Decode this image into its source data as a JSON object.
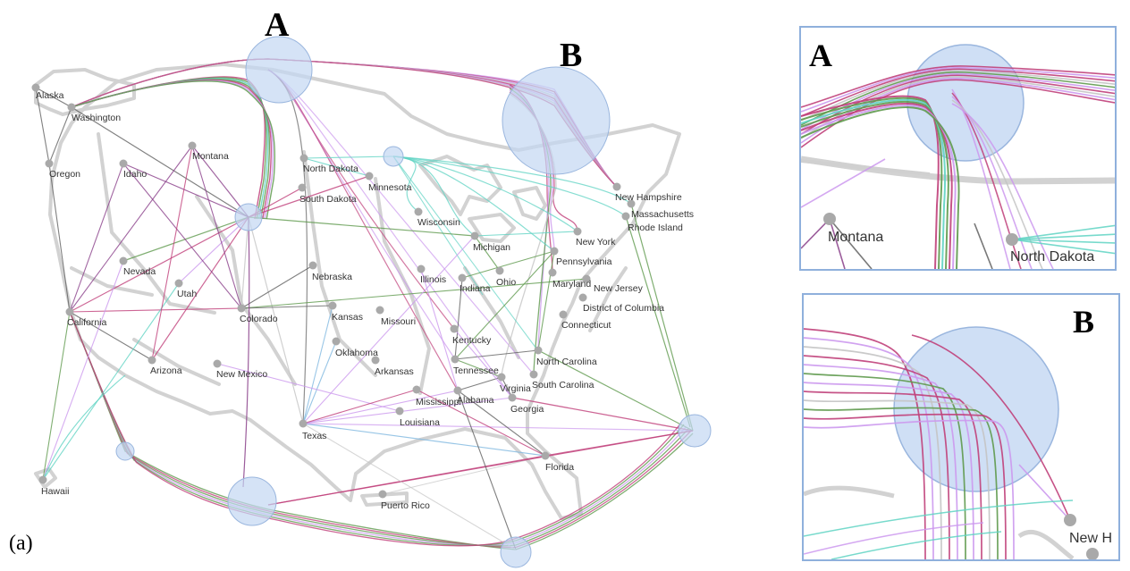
{
  "figure": {
    "panel_label": "(a)",
    "letter_a": "A",
    "letter_b": "B"
  },
  "colors": {
    "map_outline": "#d2d2d2",
    "node": "#a9a9a9",
    "hub_fill": "#c3d7f2",
    "hub_stroke": "#9ab6de",
    "edge_magenta": "#c0407a",
    "edge_green": "#5f9a4e",
    "edge_teal": "#5fd3c3",
    "edge_violet": "#cc99ee",
    "edge_dark": "#606060",
    "edge_lightgray": "#c4c4c4",
    "edge_blue": "#7fb8e0",
    "edge_purple": "#8a3f8a",
    "inset_frame": "#8fb0dc"
  },
  "states": [
    "Alaska",
    "Washington",
    "Oregon",
    "Idaho",
    "Montana",
    "Nevada",
    "Utah",
    "California",
    "Colorado",
    "Arizona",
    "New Mexico",
    "Hawaii",
    "North Dakota",
    "South Dakota",
    "Minnesota",
    "Wisconsin",
    "Nebraska",
    "Kansas",
    "Missouri",
    "Oklahoma",
    "Arkansas",
    "Texas",
    "Louisiana",
    "Mississippi",
    "Alabama",
    "Tennessee",
    "Kentucky",
    "Illinois",
    "Indiana",
    "Ohio",
    "Michigan",
    "Georgia",
    "South Carolina",
    "North Carolina",
    "Virginia",
    "Florida",
    "Puerto Rico",
    "Pennsylvania",
    "New York",
    "Maryland",
    "New Jersey",
    "District of Columbia",
    "Connecticut",
    "Rhode Island",
    "Massachusetts",
    "New Hampshire"
  ],
  "inset_a": {
    "letter": "A",
    "labels": [
      "Montana",
      "North Dakota"
    ]
  },
  "inset_b": {
    "letter": "B",
    "labels": [
      "New H"
    ]
  }
}
